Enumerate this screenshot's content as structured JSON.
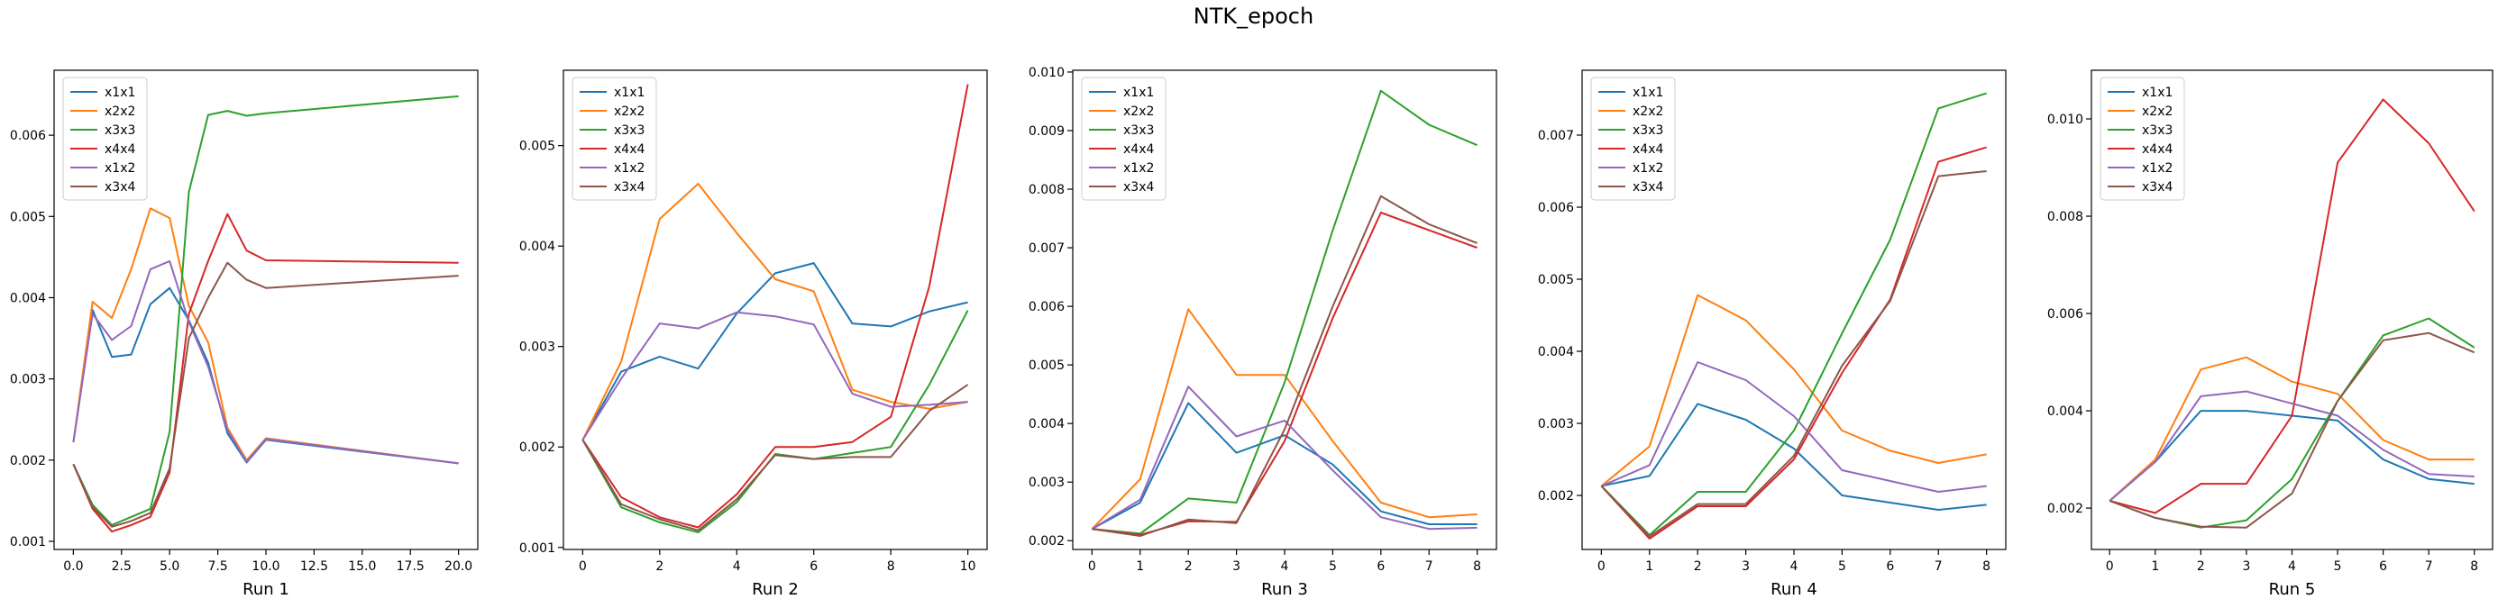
{
  "figure": {
    "title": "NTK_epoch"
  },
  "colors": {
    "x1x1": "#1f77b4",
    "x2x2": "#ff7f0e",
    "x3x3": "#2ca02c",
    "x4x4": "#d62728",
    "x1x2": "#9467bd",
    "x3x4": "#8c564b"
  },
  "chart_data": [
    {
      "type": "line",
      "xlabel": "Run 1",
      "legend": "upper-left",
      "grid": false,
      "xlim": [
        -1,
        21
      ],
      "ylim": [
        0.0009,
        0.0068
      ],
      "xticks": [
        0.0,
        2.5,
        5.0,
        7.5,
        10.0,
        12.5,
        15.0,
        17.5,
        20.0
      ],
      "xtick_labels": [
        "0.0",
        "2.5",
        "5.0",
        "7.5",
        "10.0",
        "12.5",
        "15.0",
        "17.5",
        "20.0"
      ],
      "yticks": [
        0.001,
        0.002,
        0.003,
        0.004,
        0.005,
        0.006
      ],
      "ytick_labels": [
        "0.001",
        "0.002",
        "0.003",
        "0.004",
        "0.005",
        "0.006"
      ],
      "x": [
        0,
        1,
        2,
        3,
        4,
        5,
        6,
        7,
        8,
        9,
        10,
        20
      ],
      "series": [
        {
          "name": "x1x1",
          "values": [
            0.00222,
            0.00385,
            0.00327,
            0.0033,
            0.00392,
            0.00412,
            0.00372,
            0.0032,
            0.00233,
            0.00197,
            0.00225,
            0.00196
          ]
        },
        {
          "name": "x2x2",
          "values": [
            0.00222,
            0.00395,
            0.00375,
            0.00435,
            0.0051,
            0.00498,
            0.0039,
            0.00345,
            0.0024,
            0.002,
            0.00227,
            0.00196
          ]
        },
        {
          "name": "x3x3",
          "values": [
            0.00195,
            0.00145,
            0.0012,
            0.0013,
            0.0014,
            0.00235,
            0.0053,
            0.00625,
            0.0063,
            0.00624,
            0.00627,
            0.00648
          ]
        },
        {
          "name": "x4x4",
          "values": [
            0.00195,
            0.0014,
            0.00112,
            0.0012,
            0.0013,
            0.00185,
            0.0038,
            0.00445,
            0.00503,
            0.00458,
            0.00446,
            0.00443
          ]
        },
        {
          "name": "x1x2",
          "values": [
            0.00222,
            0.0038,
            0.00348,
            0.00365,
            0.00435,
            0.00445,
            0.0037,
            0.00315,
            0.00237,
            0.00198,
            0.00226,
            0.00196
          ]
        },
        {
          "name": "x3x4",
          "values": [
            0.00195,
            0.00142,
            0.00118,
            0.00125,
            0.00135,
            0.0019,
            0.0035,
            0.004,
            0.00443,
            0.00422,
            0.00412,
            0.00427
          ]
        }
      ]
    },
    {
      "type": "line",
      "xlabel": "Run 2",
      "legend": "upper-left",
      "grid": false,
      "xlim": [
        -0.5,
        10.5
      ],
      "ylim": [
        0.00098,
        0.00575
      ],
      "xticks": [
        0,
        2,
        4,
        6,
        8,
        10
      ],
      "xtick_labels": [
        "0",
        "2",
        "4",
        "6",
        "8",
        "10"
      ],
      "yticks": [
        0.001,
        0.002,
        0.003,
        0.004,
        0.005
      ],
      "ytick_labels": [
        "0.001",
        "0.002",
        "0.003",
        "0.004",
        "0.005"
      ],
      "x": [
        0,
        1,
        2,
        3,
        4,
        5,
        6,
        7,
        8,
        9,
        10
      ],
      "series": [
        {
          "name": "x1x1",
          "values": [
            0.00207,
            0.00275,
            0.0029,
            0.00278,
            0.00333,
            0.00373,
            0.00383,
            0.00323,
            0.0032,
            0.00335,
            0.00344
          ]
        },
        {
          "name": "x2x2",
          "values": [
            0.00207,
            0.00285,
            0.00427,
            0.00462,
            0.00413,
            0.00367,
            0.00355,
            0.00257,
            0.00245,
            0.00238,
            0.00245
          ]
        },
        {
          "name": "x3x3",
          "values": [
            0.00207,
            0.0014,
            0.00125,
            0.00115,
            0.00145,
            0.00193,
            0.00188,
            0.00194,
            0.002,
            0.00262,
            0.00336
          ]
        },
        {
          "name": "x4x4",
          "values": [
            0.00207,
            0.0015,
            0.0013,
            0.0012,
            0.00153,
            0.002,
            0.002,
            0.00205,
            0.0023,
            0.0036,
            0.00561
          ]
        },
        {
          "name": "x1x2",
          "values": [
            0.00207,
            0.00268,
            0.00323,
            0.00318,
            0.00334,
            0.0033,
            0.00322,
            0.00253,
            0.0024,
            0.00242,
            0.00245
          ]
        },
        {
          "name": "x3x4",
          "values": [
            0.00207,
            0.00143,
            0.00128,
            0.00117,
            0.00148,
            0.00192,
            0.00188,
            0.0019,
            0.0019,
            0.00236,
            0.00262
          ]
        }
      ]
    },
    {
      "type": "line",
      "xlabel": "Run 3",
      "legend": "upper-left",
      "grid": false,
      "xlim": [
        -0.4,
        8.4
      ],
      "ylim": [
        0.00185,
        0.01003
      ],
      "xticks": [
        0,
        1,
        2,
        3,
        4,
        5,
        6,
        7,
        8
      ],
      "xtick_labels": [
        "0",
        "1",
        "2",
        "3",
        "4",
        "5",
        "6",
        "7",
        "8"
      ],
      "yticks": [
        0.002,
        0.003,
        0.004,
        0.005,
        0.006,
        0.007,
        0.008,
        0.009,
        0.01
      ],
      "ytick_labels": [
        "0.002",
        "0.003",
        "0.004",
        "0.005",
        "0.006",
        "0.007",
        "0.008",
        "0.009",
        "0.010"
      ],
      "x": [
        0,
        1,
        2,
        3,
        4,
        5,
        6,
        7,
        8
      ],
      "series": [
        {
          "name": "x1x1",
          "values": [
            0.0022,
            0.00265,
            0.00435,
            0.0035,
            0.0038,
            0.0033,
            0.0025,
            0.00228,
            0.00228
          ]
        },
        {
          "name": "x2x2",
          "values": [
            0.0022,
            0.00305,
            0.00595,
            0.00483,
            0.00483,
            0.0037,
            0.00265,
            0.0024,
            0.00245
          ]
        },
        {
          "name": "x3x3",
          "values": [
            0.0022,
            0.00212,
            0.00272,
            0.00265,
            0.0047,
            0.0073,
            0.00968,
            0.0091,
            0.00875
          ]
        },
        {
          "name": "x4x4",
          "values": [
            0.0022,
            0.0021,
            0.00233,
            0.00232,
            0.0037,
            0.0058,
            0.0076,
            0.0073,
            0.007
          ]
        },
        {
          "name": "x1x2",
          "values": [
            0.0022,
            0.0027,
            0.00463,
            0.00378,
            0.00405,
            0.0032,
            0.0024,
            0.0022,
            0.00222
          ]
        },
        {
          "name": "x3x4",
          "values": [
            0.0022,
            0.00208,
            0.00236,
            0.0023,
            0.0039,
            0.006,
            0.00788,
            0.0074,
            0.00708
          ]
        }
      ]
    },
    {
      "type": "line",
      "xlabel": "Run 4",
      "legend": "upper-left",
      "grid": false,
      "xlim": [
        -0.4,
        8.4
      ],
      "ylim": [
        0.00125,
        0.0079
      ],
      "xticks": [
        0,
        1,
        2,
        3,
        4,
        5,
        6,
        7,
        8
      ],
      "xtick_labels": [
        "0",
        "1",
        "2",
        "3",
        "4",
        "5",
        "6",
        "7",
        "8"
      ],
      "yticks": [
        0.002,
        0.003,
        0.004,
        0.005,
        0.006,
        0.007
      ],
      "ytick_labels": [
        "0.002",
        "0.003",
        "0.004",
        "0.005",
        "0.006",
        "0.007"
      ],
      "x": [
        0,
        1,
        2,
        3,
        4,
        5,
        6,
        7,
        8
      ],
      "series": [
        {
          "name": "x1x1",
          "values": [
            0.00213,
            0.00227,
            0.00327,
            0.00305,
            0.00265,
            0.002,
            0.0019,
            0.0018,
            0.00187
          ]
        },
        {
          "name": "x2x2",
          "values": [
            0.00213,
            0.00268,
            0.00478,
            0.00443,
            0.00375,
            0.0029,
            0.00262,
            0.00245,
            0.00257
          ]
        },
        {
          "name": "x3x3",
          "values": [
            0.00213,
            0.00145,
            0.00205,
            0.00205,
            0.0029,
            0.00425,
            0.00555,
            0.00737,
            0.00758
          ]
        },
        {
          "name": "x4x4",
          "values": [
            0.00213,
            0.0014,
            0.00185,
            0.00185,
            0.0025,
            0.0037,
            0.00472,
            0.00663,
            0.00683
          ]
        },
        {
          "name": "x1x2",
          "values": [
            0.00213,
            0.00242,
            0.00385,
            0.0036,
            0.0031,
            0.00235,
            0.0022,
            0.00205,
            0.00213
          ]
        },
        {
          "name": "x3x4",
          "values": [
            0.00213,
            0.00143,
            0.00188,
            0.00188,
            0.00255,
            0.0038,
            0.0047,
            0.00643,
            0.0065
          ]
        }
      ]
    },
    {
      "type": "line",
      "xlabel": "Run 5",
      "legend": "upper-left",
      "grid": false,
      "xlim": [
        -0.4,
        8.4
      ],
      "ylim": [
        0.00115,
        0.011
      ],
      "xticks": [
        0,
        1,
        2,
        3,
        4,
        5,
        6,
        7,
        8
      ],
      "xtick_labels": [
        "0",
        "1",
        "2",
        "3",
        "4",
        "5",
        "6",
        "7",
        "8"
      ],
      "yticks": [
        0.002,
        0.004,
        0.006,
        0.008,
        0.01
      ],
      "ytick_labels": [
        "0.002",
        "0.004",
        "0.006",
        "0.008",
        "0.010"
      ],
      "x": [
        0,
        1,
        2,
        3,
        4,
        5,
        6,
        7,
        8
      ],
      "series": [
        {
          "name": "x1x1",
          "values": [
            0.00215,
            0.00295,
            0.004,
            0.004,
            0.0039,
            0.0038,
            0.003,
            0.0026,
            0.0025
          ]
        },
        {
          "name": "x2x2",
          "values": [
            0.00215,
            0.003,
            0.00485,
            0.0051,
            0.0046,
            0.00435,
            0.0034,
            0.003,
            0.003
          ]
        },
        {
          "name": "x3x3",
          "values": [
            0.00215,
            0.0018,
            0.0016,
            0.00175,
            0.0026,
            0.0042,
            0.00555,
            0.0059,
            0.0053
          ]
        },
        {
          "name": "x4x4",
          "values": [
            0.00215,
            0.0019,
            0.0025,
            0.0025,
            0.0039,
            0.0091,
            0.0104,
            0.0095,
            0.0081
          ]
        },
        {
          "name": "x1x2",
          "values": [
            0.00215,
            0.00295,
            0.0043,
            0.0044,
            0.00415,
            0.0039,
            0.0032,
            0.0027,
            0.00265
          ]
        },
        {
          "name": "x3x4",
          "values": [
            0.00215,
            0.0018,
            0.00162,
            0.0016,
            0.0023,
            0.0042,
            0.00545,
            0.0056,
            0.0052
          ]
        }
      ]
    }
  ]
}
